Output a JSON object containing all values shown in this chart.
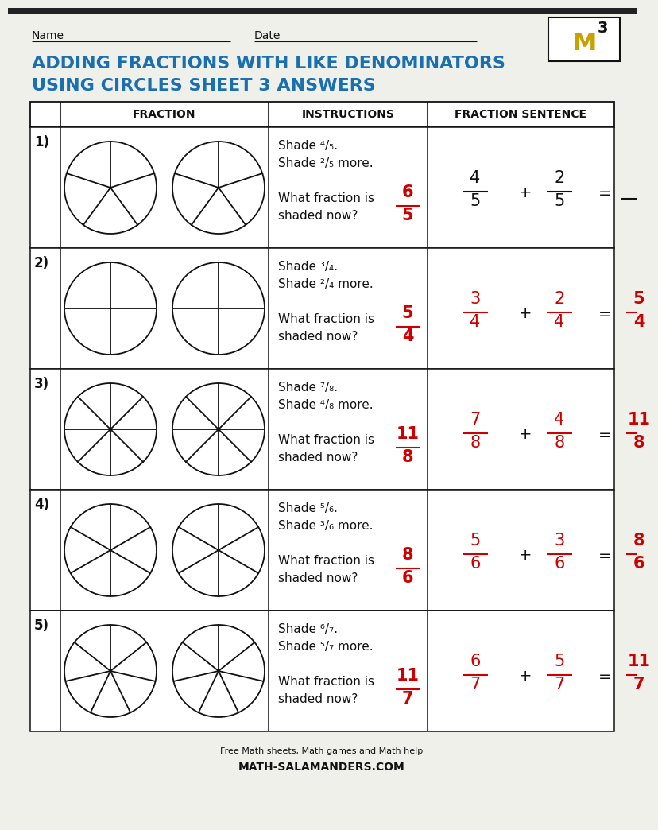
{
  "title_line1": "ADDING FRACTIONS WITH LIKE DENOMINATORS",
  "title_line2": "USING CIRCLES SHEET 3 ANSWERS",
  "title_color": "#1a6faf",
  "bg_color": "#f0f0eb",
  "name_label": "Name",
  "date_label": "Date",
  "col_headers": [
    "FRACTION",
    "INSTRUCTIONS",
    "FRACTION SENTENCE"
  ],
  "problems": [
    {
      "num": "1)",
      "segments": 5,
      "shade1": 4,
      "shade2": 2,
      "denom": 5,
      "answer_num": "6",
      "answer_den": "5",
      "frac1_num": "4",
      "frac1_den": "5",
      "frac2_num": "2",
      "frac2_den": "5",
      "result_num": "",
      "result_den": "",
      "show_result": false,
      "sentence_color": "#111111"
    },
    {
      "num": "2)",
      "segments": 4,
      "shade1": 3,
      "shade2": 2,
      "denom": 4,
      "answer_num": "5",
      "answer_den": "4",
      "frac1_num": "3",
      "frac1_den": "4",
      "frac2_num": "2",
      "frac2_den": "4",
      "result_num": "5",
      "result_den": "4",
      "show_result": true,
      "sentence_color": "#cc0000"
    },
    {
      "num": "3)",
      "segments": 8,
      "shade1": 7,
      "shade2": 4,
      "denom": 8,
      "answer_num": "11",
      "answer_den": "8",
      "frac1_num": "7",
      "frac1_den": "8",
      "frac2_num": "4",
      "frac2_den": "8",
      "result_num": "11",
      "result_den": "8",
      "show_result": true,
      "sentence_color": "#cc0000"
    },
    {
      "num": "4)",
      "segments": 6,
      "shade1": 5,
      "shade2": 3,
      "denom": 6,
      "answer_num": "8",
      "answer_den": "6",
      "frac1_num": "5",
      "frac1_den": "6",
      "frac2_num": "3",
      "frac2_den": "6",
      "result_num": "8",
      "result_den": "6",
      "show_result": true,
      "sentence_color": "#cc0000"
    },
    {
      "num": "5)",
      "segments": 7,
      "shade1": 6,
      "shade2": 5,
      "denom": 7,
      "answer_num": "11",
      "answer_den": "7",
      "frac1_num": "6",
      "frac1_den": "7",
      "frac2_num": "5",
      "frac2_den": "7",
      "result_num": "11",
      "result_den": "7",
      "show_result": true,
      "sentence_color": "#cc0000"
    }
  ],
  "answer_color": "#cc0000",
  "black_color": "#111111",
  "footer1": "Free Math sheets, Math games and Math help",
  "footer2": "MATH-SALAMANDERS.COM"
}
